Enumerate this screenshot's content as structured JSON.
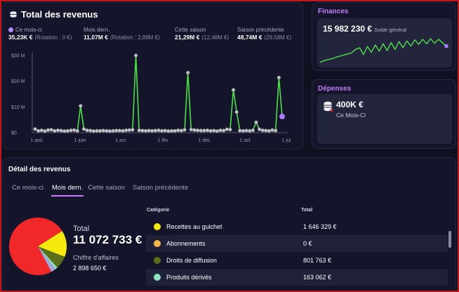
{
  "revenue": {
    "title": "Total des revenus",
    "stats": [
      {
        "label": "Ce mois-ci",
        "value": "35,23K €",
        "sub": "(Rotation : 0 €)"
      },
      {
        "label": "Mois dern.",
        "value": "11,07M €",
        "sub": "(Rotation : 2,89M €)"
      },
      {
        "label": "Cette saison",
        "value": "21,29M €",
        "sub": "(12,48M €)"
      },
      {
        "label": "Saison précédente",
        "value": "48,74M €",
        "sub": "(29,58M €)"
      }
    ]
  },
  "chart_data": {
    "type": "line",
    "yticks": [
      "$0",
      "$10 M",
      "$20 M",
      "$30 M"
    ],
    "ylim": [
      0,
      30
    ],
    "xticks": [
      "1 aoû",
      "1 juin",
      "1 avr",
      "1 fév",
      "1 déc",
      "1 oct",
      "1 jui"
    ],
    "series": [
      {
        "values": [
          1.4,
          0.7,
          0.9,
          0.6,
          1.0,
          1.1,
          0.7,
          0.9,
          0.8,
          0.6,
          0.7,
          0.9,
          1.0,
          0.7,
          10.4,
          1.4,
          0.9,
          0.8,
          0.6,
          0.7,
          0.7,
          0.8,
          0.7,
          0.6,
          0.7,
          0.8,
          0.8,
          0.7,
          0.9,
          1.0,
          1.1,
          30.0,
          0.9,
          0.8,
          0.7,
          0.8,
          0.7,
          0.8,
          0.9,
          0.7,
          0.8,
          0.6,
          0.7,
          0.7,
          0.9,
          0.8,
          1.1,
          23.3,
          1.2,
          1.0,
          0.9,
          0.8,
          0.8,
          0.9,
          0.7,
          0.8,
          0.6,
          0.9,
          0.8,
          1.3,
          1.2,
          16.6,
          8.0,
          0.8,
          0.7,
          0.8,
          0.7,
          0.9,
          4.0,
          1.3,
          0.9,
          0.8,
          0.7,
          1.0,
          0.8,
          21.4,
          6.3
        ],
        "color": "#4ee04a"
      }
    ],
    "last_point_color": "#a97cff"
  },
  "finances": {
    "title": "Finances",
    "value": "15 982 230 €",
    "sub": "Solde général",
    "spark": [
      0.92,
      0.86,
      0.82,
      0.79,
      0.74,
      0.7,
      0.66,
      0.62,
      0.58,
      0.46,
      0.4,
      0.64,
      0.36,
      0.56,
      0.3,
      0.52,
      0.26,
      0.5,
      0.22,
      0.46,
      0.18,
      0.4,
      0.16,
      0.34,
      0.12,
      0.28,
      0.1,
      0.26,
      0.08,
      0.24,
      0.1,
      0.22,
      0.34
    ],
    "spark_color": "#4ee04a"
  },
  "depenses": {
    "title": "Dépenses",
    "value": "400K €",
    "sub": "Ce Mois-Ci"
  },
  "detail": {
    "title": "Détail des revenus",
    "tabs": [
      "Ce mois-ci",
      "Mois dern.",
      "Cette saison",
      "Saison précédente"
    ],
    "active_tab": 1,
    "total_label": "Total",
    "total_value": "11 072 733 €",
    "ca_label": "Chiffre d'affaires",
    "ca_value": "2 898 650 €",
    "table": {
      "headers": [
        "Catégorie",
        "Total"
      ],
      "rows": [
        {
          "category": "Recettes au guichet",
          "total": "1 646 329 €",
          "color": "#f5e90f"
        },
        {
          "category": "Abonnements",
          "total": "0 €",
          "color": "#f6b84b"
        },
        {
          "category": "Droits de diffusion",
          "total": "801 763 €",
          "color": "#5b6e1a"
        },
        {
          "category": "Produits dérivés",
          "total": "163 062 €",
          "color": "#8fe0c3"
        }
      ]
    },
    "pie": [
      {
        "value": 8172579,
        "color": "#f0282a"
      },
      {
        "value": 1646329,
        "color": "#f5e90f"
      },
      {
        "value": 801763,
        "color": "#5b6e1a"
      },
      {
        "value": 163062,
        "color": "#8fe0c3"
      },
      {
        "value": 289000,
        "color": "#a6a6d8"
      }
    ]
  }
}
